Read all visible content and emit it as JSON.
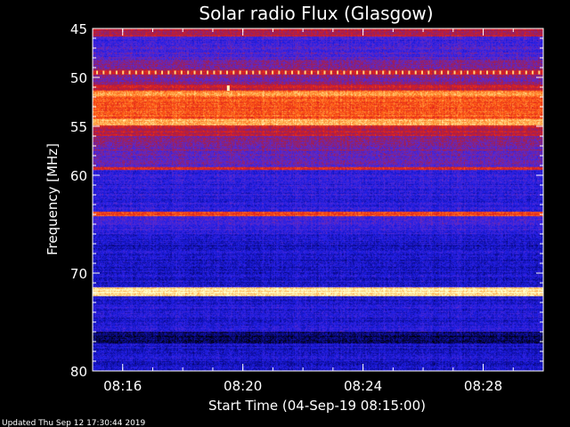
{
  "chart_data": {
    "type": "heatmap",
    "title": "Solar radio Flux (Glasgow)",
    "xlabel": "Start Time (04-Sep-19 08:15:00)",
    "ylabel": "Frequency [MHz]",
    "x_unit": "time (HH:MM, 04-Sep-19)",
    "xlim": [
      "08:15:00",
      "08:30:00"
    ],
    "x_ticks": [
      "08:16",
      "08:20",
      "08:24",
      "08:28"
    ],
    "ylim": [
      45,
      80
    ],
    "y_axis_direction": "top-to-bottom increasing",
    "y_ticks": [
      45,
      50,
      55,
      60,
      70,
      80
    ],
    "colormap": [
      "#000000",
      "#0a0a8c",
      "#1e1ee6",
      "#5a2ad2",
      "#a01e50",
      "#dc1e1e",
      "#ff5a14",
      "#ffb450",
      "#ffffc8"
    ],
    "frequency_profile": [
      {
        "from": 45.0,
        "to": 45.8,
        "level": 0.55
      },
      {
        "from": 45.8,
        "to": 47.0,
        "level": 0.32
      },
      {
        "from": 47.0,
        "to": 48.2,
        "level": 0.36
      },
      {
        "from": 48.2,
        "to": 49.3,
        "level": 0.46
      },
      {
        "from": 49.3,
        "to": 49.7,
        "level": 0.62
      },
      {
        "from": 49.7,
        "to": 50.7,
        "level": 0.45
      },
      {
        "from": 50.7,
        "to": 51.4,
        "level": 0.58
      },
      {
        "from": 51.4,
        "to": 51.9,
        "level": 0.84
      },
      {
        "from": 51.9,
        "to": 54.3,
        "level": 0.74
      },
      {
        "from": 54.3,
        "to": 54.9,
        "level": 0.88
      },
      {
        "from": 54.9,
        "to": 56.0,
        "level": 0.56
      },
      {
        "from": 56.0,
        "to": 57.5,
        "level": 0.44
      },
      {
        "from": 57.5,
        "to": 59.2,
        "level": 0.4
      },
      {
        "from": 59.2,
        "to": 59.5,
        "level": 0.62
      },
      {
        "from": 59.5,
        "to": 63.7,
        "level": 0.28
      },
      {
        "from": 63.7,
        "to": 64.2,
        "level": 0.7
      },
      {
        "from": 64.2,
        "to": 66.0,
        "level": 0.3
      },
      {
        "from": 66.0,
        "to": 71.5,
        "level": 0.22
      },
      {
        "from": 71.5,
        "to": 72.4,
        "level": 0.97
      },
      {
        "from": 72.4,
        "to": 76.0,
        "level": 0.24
      },
      {
        "from": 76.0,
        "to": 77.2,
        "level": 0.1
      },
      {
        "from": 77.2,
        "to": 80.0,
        "level": 0.22
      }
    ],
    "features": [
      {
        "type": "periodic-interference",
        "frequency": 49.5
      },
      {
        "type": "spike",
        "time": "08:19:30",
        "frequency": 51.1
      }
    ]
  },
  "footer": {
    "updated": "Updated Thu Sep 12 17:30:44 2019"
  }
}
